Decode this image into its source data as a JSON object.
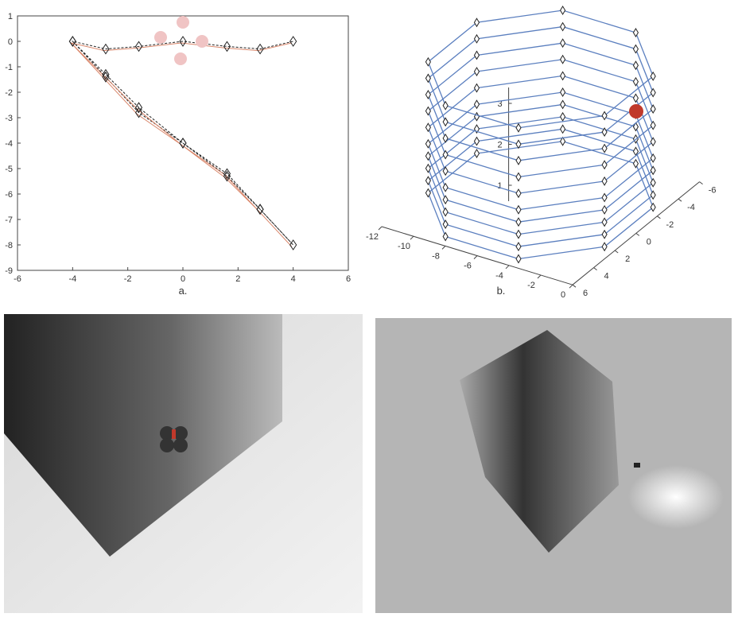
{
  "chart_data": [
    {
      "type": "line",
      "caption": "a.",
      "xlim": [
        -6,
        6
      ],
      "ylim": [
        -9,
        1
      ],
      "xticks": [
        -6,
        -4,
        -2,
        0,
        2,
        4,
        6
      ],
      "yticks": [
        1,
        0,
        -1,
        -2,
        -3,
        -4,
        -5,
        -6,
        -7,
        -8,
        -9
      ],
      "series": [
        {
          "color": "#d9866a",
          "x": [
            -4,
            -2.8,
            -1.6,
            0,
            1.6,
            2.8,
            4,
            2.8,
            1.6,
            0,
            -1.6,
            -2.8,
            -4,
            -2.8,
            -1.6,
            0,
            1.6,
            2.8,
            4
          ],
          "y": [
            0,
            -1.3,
            -2.6,
            -4,
            -5.3,
            -6.6,
            -8,
            -6.6,
            -5.2,
            -4,
            -2.8,
            -1.4,
            0,
            -0.3,
            -0.2,
            0,
            -0.2,
            -0.3,
            0
          ]
        }
      ]
    },
    {
      "type": "line3d",
      "caption": "b.",
      "xlim": [
        -12,
        0
      ],
      "ylim": [
        -6,
        6
      ],
      "zlim": [
        1,
        3
      ],
      "xticks": [
        -12,
        -10,
        -8,
        -6,
        -4,
        -2,
        0
      ],
      "yticks": [
        -6,
        -4,
        -2,
        0,
        2,
        4,
        6
      ],
      "zticks": [
        1,
        2,
        3
      ],
      "series": [
        {
          "color": "#5b7fbf",
          "levels": [
            0.8,
            1.1,
            1.4,
            1.7,
            2.0,
            2.4,
            2.8,
            3.2,
            3.6,
            4.0
          ]
        }
      ]
    }
  ]
}
